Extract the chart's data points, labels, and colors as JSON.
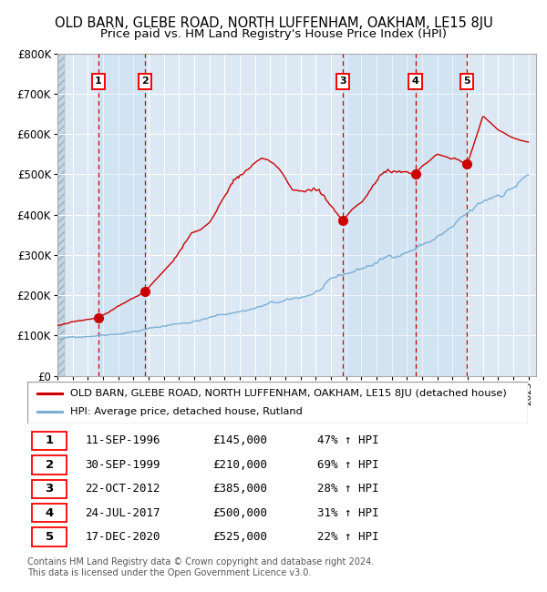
{
  "title": "OLD BARN, GLEBE ROAD, NORTH LUFFENHAM, OAKHAM, LE15 8JU",
  "subtitle": "Price paid vs. HM Land Registry's House Price Index (HPI)",
  "yticks": [
    0,
    100000,
    200000,
    300000,
    400000,
    500000,
    600000,
    700000,
    800000
  ],
  "x_start_year": 1994,
  "x_end_year": 2025,
  "plot_bg_color": "#dce9f5",
  "red_line_color": "#cc0000",
  "blue_line_color": "#7bafd4",
  "sale_points": [
    {
      "year": 1996.7,
      "price": 145000,
      "label": "1"
    },
    {
      "year": 1999.75,
      "price": 210000,
      "label": "2"
    },
    {
      "year": 2012.8,
      "price": 385000,
      "label": "3"
    },
    {
      "year": 2017.55,
      "price": 500000,
      "label": "4"
    },
    {
      "year": 2020.96,
      "price": 525000,
      "label": "5"
    }
  ],
  "legend_red_label": "OLD BARN, GLEBE ROAD, NORTH LUFFENHAM, OAKHAM, LE15 8JU (detached house)",
  "legend_blue_label": "HPI: Average price, detached house, Rutland",
  "table_rows": [
    [
      "1",
      "11-SEP-1996",
      "£145,000",
      "47% ↑ HPI"
    ],
    [
      "2",
      "30-SEP-1999",
      "£210,000",
      "69% ↑ HPI"
    ],
    [
      "3",
      "22-OCT-2012",
      "£385,000",
      "28% ↑ HPI"
    ],
    [
      "4",
      "24-JUL-2017",
      "£500,000",
      "31% ↑ HPI"
    ],
    [
      "5",
      "17-DEC-2020",
      "£525,000",
      "22% ↑ HPI"
    ]
  ],
  "footer": "Contains HM Land Registry data © Crown copyright and database right 2024.\nThis data is licensed under the Open Government Licence v3.0."
}
